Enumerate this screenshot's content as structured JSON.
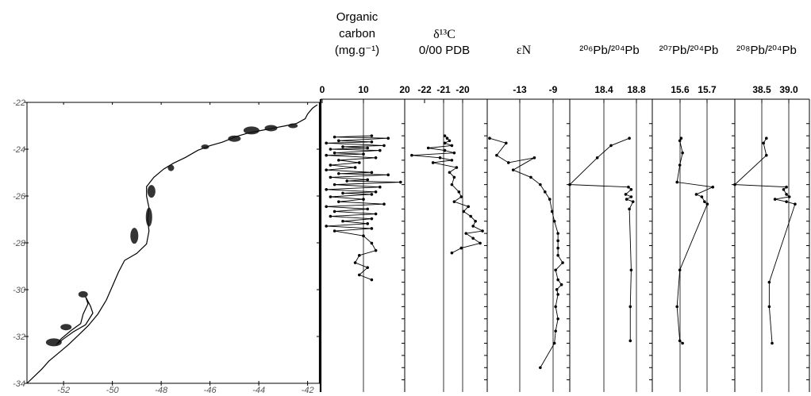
{
  "map": {
    "y_ticks": [
      "-22",
      "-24",
      "-26",
      "-28",
      "-30",
      "-32",
      "-34"
    ],
    "x_ticks": [
      "-52",
      "-50",
      "-48",
      "-46",
      "-44",
      "-42"
    ]
  },
  "panels": [
    {
      "id": "oc",
      "title_lines": [
        "Organic",
        "carbon",
        "(mg.g⁻¹)"
      ],
      "ticks": [
        "0",
        "10",
        "20"
      ]
    },
    {
      "id": "d13c",
      "title_lines": [
        "δ¹³C",
        "0/00 PDB"
      ],
      "ticks": [
        "-22",
        "-21",
        "-20"
      ]
    },
    {
      "id": "en",
      "title_lines": [
        "εN"
      ],
      "ticks": [
        "-13",
        "-9"
      ]
    },
    {
      "id": "pb206",
      "title_lines": [
        "²⁰⁶Pb/²⁰⁴Pb"
      ],
      "ticks": [
        "18.4",
        "18.8"
      ]
    },
    {
      "id": "pb207",
      "title_lines": [
        "²⁰⁷Pb/²⁰⁴Pb"
      ],
      "ticks": [
        "15.6",
        "15.7"
      ]
    },
    {
      "id": "pb208",
      "title_lines": [
        "²⁰⁸Pb/²⁰⁴Pb"
      ],
      "ticks": [
        "38.5",
        "39.0"
      ]
    }
  ],
  "chart_data": [
    {
      "type": "line",
      "name": "map",
      "x_axis_ticks": [
        -52,
        -50,
        -48,
        -46,
        -44,
        -42
      ],
      "y_axis_ticks": [
        -22,
        -24,
        -26,
        -28,
        -30,
        -32,
        -34
      ],
      "xlim": [
        -53.5,
        -41.5
      ],
      "ylim": [
        -34,
        -22
      ]
    },
    {
      "type": "line",
      "title": "Organic carbon (mg.g-1)",
      "xlim": [
        0,
        20
      ],
      "x": [
        12,
        3,
        16,
        4,
        12,
        1,
        15,
        5,
        11,
        2,
        14,
        3,
        10,
        1,
        13,
        4,
        9,
        2,
        8,
        1,
        12,
        4,
        16,
        2,
        11,
        6,
        19,
        3,
        14,
        1,
        13,
        5,
        12,
        2,
        10,
        4,
        15,
        1,
        11,
        3,
        13,
        2,
        12,
        5,
        11,
        1,
        12,
        3,
        10,
        12,
        13,
        9,
        8,
        11,
        9,
        12
      ],
      "y": [
        -23.5,
        -23.55,
        -23.6,
        -23.7,
        -23.75,
        -23.8,
        -23.9,
        -23.95,
        -24.0,
        -24.05,
        -24.1,
        -24.2,
        -24.25,
        -24.3,
        -24.4,
        -24.5,
        -24.6,
        -24.7,
        -24.8,
        -24.9,
        -25.0,
        -25.05,
        -25.1,
        -25.2,
        -25.3,
        -25.35,
        -25.4,
        -25.5,
        -25.6,
        -25.7,
        -25.8,
        -25.85,
        -25.9,
        -26.0,
        -26.1,
        -26.2,
        -26.3,
        -26.4,
        -26.5,
        -26.6,
        -26.7,
        -26.8,
        -26.9,
        -27.0,
        -27.1,
        -27.2,
        -27.3,
        -27.4,
        -27.6,
        -27.9,
        -28.2,
        -28.4,
        -28.7,
        -28.9,
        -29.2,
        -29.4
      ]
    },
    {
      "type": "line",
      "title": "δ¹³C 0/00 PDB",
      "xlim": [
        -23,
        -19.5
      ],
      "x": [
        -21.3,
        -21.2,
        -21.1,
        -21.3,
        -21.0,
        -22.0,
        -21.3,
        -20.9,
        -22.7,
        -21.5,
        -21.0,
        -21.8,
        -20.8,
        -21.1,
        -20.9,
        -21.0,
        -20.7,
        -20.6,
        -20.9,
        -20.3,
        -20.5,
        -20.2,
        -20.0,
        -20.1,
        -19.7,
        -20.4,
        -20.1,
        -19.8,
        -20.6,
        -21.0
      ],
      "y": [
        -23.5,
        -23.6,
        -23.7,
        -23.8,
        -23.9,
        -24.0,
        -24.1,
        -24.2,
        -24.3,
        -24.4,
        -24.5,
        -24.6,
        -24.8,
        -25.0,
        -25.2,
        -25.5,
        -25.8,
        -26.0,
        -26.2,
        -26.4,
        -26.6,
        -26.8,
        -27.0,
        -27.2,
        -27.4,
        -27.5,
        -27.7,
        -27.9,
        -28.1,
        -28.3
      ]
    },
    {
      "type": "line",
      "title": "εN",
      "xlim": [
        -15,
        -8
      ],
      "x": [
        -14.8,
        -13.4,
        -14.2,
        -13.2,
        -11.0,
        -12.8,
        -11.3,
        -10.5,
        -10.1,
        -9.7,
        -9.5,
        -9.3,
        -9.0,
        -9.0,
        -9.0,
        -9.0,
        -8.6,
        -9.2,
        -9.0,
        -8.7,
        -9.1,
        -9.0,
        -9.2,
        -9.0,
        -9.2,
        -9.3,
        -10.5
      ],
      "y": [
        -23.6,
        -23.8,
        -24.3,
        -24.6,
        -24.4,
        -24.9,
        -25.2,
        -25.5,
        -25.8,
        -26.1,
        -26.6,
        -27.0,
        -27.5,
        -27.8,
        -28.1,
        -28.4,
        -28.7,
        -29.0,
        -29.4,
        -29.6,
        -29.8,
        -30.0,
        -30.5,
        -31.0,
        -31.5,
        -32.0,
        -33.0
      ]
    },
    {
      "type": "line",
      "title": "²⁰⁶Pb/²⁰⁴Pb",
      "xlim": [
        18.0,
        18.9
      ],
      "x": [
        18.65,
        18.45,
        18.3,
        18.0,
        18.64,
        18.67,
        18.61,
        18.67,
        18.62,
        18.69,
        18.65,
        18.67,
        18.66,
        18.66
      ],
      "y": [
        -23.6,
        -23.9,
        -24.4,
        -25.5,
        -25.6,
        -25.7,
        -25.9,
        -26.0,
        -26.1,
        -26.2,
        -26.5,
        -29.0,
        -30.5,
        -31.9
      ]
    },
    {
      "type": "line",
      "title": "²⁰⁷Pb/²⁰⁴Pb",
      "xlim": [
        15.5,
        15.8
      ],
      "x": [
        15.605,
        15.6,
        15.61,
        15.6,
        15.59,
        15.72,
        15.66,
        15.68,
        15.69,
        15.7,
        15.6,
        15.59,
        15.6,
        15.61
      ],
      "y": [
        -23.6,
        -23.7,
        -24.2,
        -24.7,
        -25.4,
        -25.6,
        -25.9,
        -26.0,
        -26.2,
        -26.3,
        -29.0,
        -30.5,
        -31.9,
        -32.0
      ]
    },
    {
      "type": "line",
      "title": "²⁰⁸Pb/²⁰⁴Pb",
      "xlim": [
        38.0,
        39.3
      ],
      "x": [
        38.55,
        38.5,
        38.55,
        38.0,
        38.9,
        38.85,
        38.9,
        38.95,
        38.7,
        38.9,
        39.05,
        38.6,
        38.6,
        38.65
      ],
      "y": [
        -23.6,
        -23.8,
        -24.3,
        -25.5,
        -25.6,
        -25.7,
        -25.9,
        -26.0,
        -26.1,
        -26.2,
        -26.3,
        -29.5,
        -30.5,
        -32.0
      ]
    }
  ]
}
